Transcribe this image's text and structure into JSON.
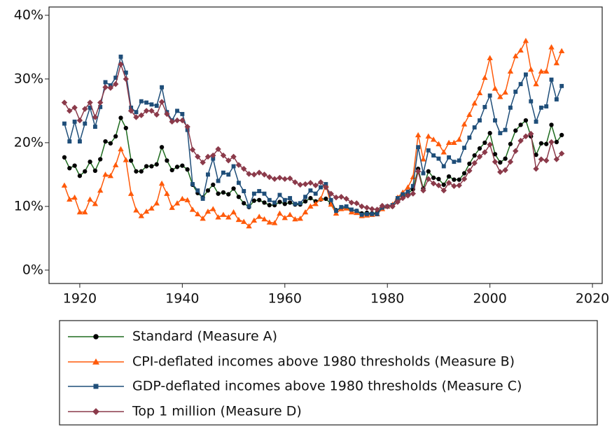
{
  "chart_data": {
    "type": "line",
    "x": [
      1917,
      1918,
      1919,
      1920,
      1921,
      1922,
      1923,
      1924,
      1925,
      1926,
      1927,
      1928,
      1929,
      1930,
      1931,
      1932,
      1933,
      1934,
      1935,
      1936,
      1937,
      1938,
      1939,
      1940,
      1941,
      1942,
      1943,
      1944,
      1945,
      1946,
      1947,
      1948,
      1949,
      1950,
      1951,
      1952,
      1953,
      1954,
      1955,
      1956,
      1957,
      1958,
      1959,
      1960,
      1961,
      1962,
      1963,
      1964,
      1965,
      1966,
      1967,
      1968,
      1969,
      1970,
      1971,
      1972,
      1973,
      1974,
      1975,
      1976,
      1977,
      1978,
      1979,
      1980,
      1981,
      1982,
      1983,
      1984,
      1985,
      1986,
      1987,
      1988,
      1989,
      1990,
      1991,
      1992,
      1993,
      1994,
      1995,
      1996,
      1997,
      1998,
      1999,
      2000,
      2001,
      2002,
      2003,
      2004,
      2005,
      2006,
      2007,
      2008,
      2009,
      2010,
      2011,
      2012,
      2013,
      2014
    ],
    "series": [
      {
        "name": "Standard (Measure A)",
        "color": "#1e6b1e",
        "marker_color": "#000000",
        "marker": "circle",
        "values": [
          17.7,
          16.0,
          16.4,
          14.8,
          15.5,
          17.0,
          15.6,
          17.4,
          20.2,
          19.9,
          21.0,
          23.9,
          22.3,
          17.2,
          15.5,
          15.5,
          16.3,
          16.3,
          16.6,
          19.3,
          17.2,
          15.7,
          16.2,
          16.4,
          15.8,
          13.4,
          12.1,
          11.4,
          12.5,
          13.4,
          12.0,
          12.2,
          11.9,
          12.8,
          11.5,
          10.5,
          9.9,
          10.9,
          11.0,
          10.6,
          10.2,
          10.2,
          10.7,
          10.4,
          10.6,
          10.3,
          10.3,
          10.8,
          11.3,
          10.8,
          11.1,
          11.2,
          10.4,
          9.4,
          9.7,
          9.8,
          9.4,
          9.3,
          8.9,
          9.0,
          8.9,
          9.0,
          10.0,
          10.0,
          10.0,
          10.8,
          11.6,
          12.0,
          12.7,
          15.9,
          12.8,
          15.5,
          14.5,
          14.3,
          13.4,
          14.7,
          14.2,
          14.2,
          15.2,
          16.7,
          18.0,
          19.1,
          20.0,
          21.5,
          18.2,
          16.9,
          17.5,
          19.8,
          21.9,
          22.8,
          23.5,
          21.0,
          18.1,
          19.9,
          19.8,
          22.8,
          20.1,
          21.2
        ]
      },
      {
        "name": "CPI-deflated incomes above 1980 thresholds (Measure B)",
        "color": "#ff5a0a",
        "marker_color": "#ff5a0a",
        "marker": "triangle",
        "values": [
          13.3,
          11.1,
          11.4,
          9.1,
          9.1,
          11.1,
          10.4,
          12.5,
          15.0,
          14.8,
          16.5,
          19.0,
          17.3,
          12.0,
          9.4,
          8.5,
          9.2,
          9.7,
          10.5,
          13.6,
          12.0,
          9.8,
          10.5,
          11.2,
          11.0,
          9.5,
          8.8,
          8.1,
          9.2,
          9.6,
          8.3,
          8.7,
          8.3,
          9.1,
          7.9,
          7.6,
          6.9,
          7.8,
          8.4,
          8.0,
          7.5,
          7.4,
          8.9,
          8.2,
          8.7,
          8.0,
          8.1,
          9.1,
          10.0,
          10.4,
          11.2,
          13.4,
          10.3,
          8.9,
          9.6,
          9.7,
          9.1,
          9.0,
          8.5,
          8.6,
          8.7,
          8.8,
          9.6,
          10.0,
          10.3,
          11.4,
          12.2,
          13.0,
          14.6,
          21.2,
          17.4,
          21.0,
          20.5,
          19.8,
          18.5,
          20.0,
          20.0,
          20.5,
          22.9,
          24.4,
          26.2,
          27.8,
          30.2,
          33.3,
          28.5,
          27.2,
          27.9,
          31.2,
          33.6,
          34.5,
          36.0,
          31.5,
          29.2,
          31.2,
          31.2,
          35.0,
          32.5,
          34.4
        ]
      },
      {
        "name": "GDP-deflated incomes above 1980 thresholds (Measure C)",
        "color": "#1f4e79",
        "marker_color": "#1f4e79",
        "marker": "square",
        "values": [
          23.0,
          20.2,
          23.3,
          20.2,
          23.0,
          25.5,
          22.5,
          25.6,
          29.5,
          29.0,
          30.2,
          33.5,
          31.0,
          25.5,
          24.8,
          26.5,
          26.3,
          26.0,
          25.8,
          28.7,
          24.8,
          23.5,
          25.0,
          24.5,
          22.0,
          13.5,
          12.5,
          11.2,
          15.0,
          17.5,
          14.0,
          15.3,
          15.0,
          16.3,
          13.7,
          12.4,
          10.0,
          12.0,
          12.4,
          12.0,
          11.0,
          10.6,
          11.8,
          11.0,
          11.3,
          10.4,
          10.5,
          11.5,
          12.5,
          12.0,
          13.0,
          13.5,
          11.0,
          9.3,
          9.9,
          10.0,
          9.5,
          9.3,
          8.7,
          8.8,
          8.8,
          8.8,
          9.8,
          10.0,
          10.2,
          11.3,
          11.9,
          12.3,
          13.2,
          19.3,
          15.2,
          18.8,
          18.0,
          17.5,
          16.3,
          17.7,
          17.0,
          17.2,
          19.2,
          20.8,
          22.4,
          23.5,
          25.6,
          27.4,
          23.5,
          21.5,
          22.0,
          25.5,
          28.0,
          29.2,
          30.7,
          26.5,
          23.3,
          25.5,
          25.7,
          29.9,
          26.8,
          28.9
        ]
      },
      {
        "name": "Top 1 million (Measure D)",
        "color": "#8b3a4a",
        "marker_color": "#8b3a4a",
        "marker": "diamond",
        "values": [
          26.3,
          25.0,
          25.5,
          23.5,
          25.3,
          26.3,
          24.0,
          26.3,
          28.7,
          28.6,
          29.2,
          32.3,
          30.0,
          25.0,
          24.0,
          24.3,
          25.0,
          25.0,
          24.4,
          26.4,
          24.5,
          23.3,
          23.5,
          23.5,
          22.5,
          18.9,
          17.8,
          16.9,
          17.8,
          18.0,
          19.0,
          18.0,
          17.2,
          17.8,
          16.5,
          15.9,
          15.1,
          15.0,
          15.3,
          15.0,
          14.6,
          14.3,
          14.5,
          14.3,
          14.4,
          13.8,
          13.4,
          13.5,
          13.7,
          13.3,
          13.8,
          13.0,
          12.0,
          11.4,
          11.5,
          11.2,
          10.6,
          10.5,
          10.0,
          9.8,
          9.6,
          9.5,
          10.1,
          10.0,
          10.0,
          10.7,
          11.3,
          11.7,
          12.0,
          15.5,
          12.5,
          14.3,
          13.6,
          13.3,
          12.5,
          13.7,
          13.2,
          13.3,
          14.3,
          15.6,
          16.8,
          17.8,
          18.5,
          19.7,
          17.0,
          15.4,
          15.7,
          17.0,
          18.7,
          20.3,
          21.0,
          21.4,
          15.9,
          17.4,
          17.2,
          20.1,
          17.4,
          18.3
        ]
      }
    ],
    "xlim": [
      1914,
      2021.9
    ],
    "xticks": [
      1920,
      1940,
      1960,
      1980,
      2000,
      2020
    ],
    "ylim": [
      -2.1,
      41.3
    ],
    "yticks": [
      {
        "value": 0,
        "label": "0%"
      },
      {
        "value": 10,
        "label": "10%"
      },
      {
        "value": 20,
        "label": "20%"
      },
      {
        "value": 30,
        "label": "30%"
      },
      {
        "value": 40,
        "label": "40%"
      }
    ],
    "grid": false,
    "legend": "bottom"
  }
}
